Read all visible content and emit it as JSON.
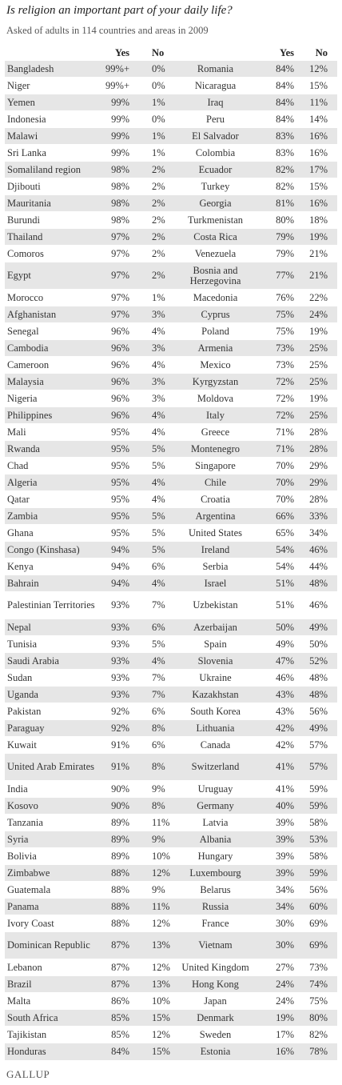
{
  "title": "Is religion an important part of your daily life?",
  "subtitle": "Asked of adults in 114 countries and areas in 2009",
  "headers": {
    "yes": "Yes",
    "no": "No"
  },
  "rows": [
    {
      "c1": "Bangladesh",
      "y1": "99%+",
      "n1": "0%",
      "c2": "Romania",
      "y2": "84%",
      "n2": "12%"
    },
    {
      "c1": "Niger",
      "y1": "99%+",
      "n1": "0%",
      "c2": "Nicaragua",
      "y2": "84%",
      "n2": "15%"
    },
    {
      "c1": "Yemen",
      "y1": "99%",
      "n1": "1%",
      "c2": "Iraq",
      "y2": "84%",
      "n2": "11%"
    },
    {
      "c1": "Indonesia",
      "y1": "99%",
      "n1": "0%",
      "c2": "Peru",
      "y2": "84%",
      "n2": "14%"
    },
    {
      "c1": "Malawi",
      "y1": "99%",
      "n1": "1%",
      "c2": "El Salvador",
      "y2": "83%",
      "n2": "16%"
    },
    {
      "c1": "Sri Lanka",
      "y1": "99%",
      "n1": "1%",
      "c2": "Colombia",
      "y2": "83%",
      "n2": "16%"
    },
    {
      "c1": "Somaliland region",
      "y1": "98%",
      "n1": "2%",
      "c2": "Ecuador",
      "y2": "82%",
      "n2": "17%"
    },
    {
      "c1": "Djibouti",
      "y1": "98%",
      "n1": "2%",
      "c2": "Turkey",
      "y2": "82%",
      "n2": "15%"
    },
    {
      "c1": "Mauritania",
      "y1": "98%",
      "n1": "2%",
      "c2": "Georgia",
      "y2": "81%",
      "n2": "16%"
    },
    {
      "c1": "Burundi",
      "y1": "98%",
      "n1": "2%",
      "c2": "Turkmenistan",
      "y2": "80%",
      "n2": "18%"
    },
    {
      "c1": "Thailand",
      "y1": "97%",
      "n1": "2%",
      "c2": "Costa Rica",
      "y2": "79%",
      "n2": "19%"
    },
    {
      "c1": "Comoros",
      "y1": "97%",
      "n1": "2%",
      "c2": "Venezuela",
      "y2": "79%",
      "n2": "21%"
    },
    {
      "c1": "Egypt",
      "y1": "97%",
      "n1": "2%",
      "c2": "Bosnia and Herzegovina",
      "y2": "77%",
      "n2": "21%"
    },
    {
      "c1": "Morocco",
      "y1": "97%",
      "n1": "1%",
      "c2": "Macedonia",
      "y2": "76%",
      "n2": "22%"
    },
    {
      "c1": "Afghanistan",
      "y1": "97%",
      "n1": "3%",
      "c2": "Cyprus",
      "y2": "75%",
      "n2": "24%"
    },
    {
      "c1": "Senegal",
      "y1": "96%",
      "n1": "4%",
      "c2": "Poland",
      "y2": "75%",
      "n2": "19%"
    },
    {
      "c1": "Cambodia",
      "y1": "96%",
      "n1": "3%",
      "c2": "Armenia",
      "y2": "73%",
      "n2": "25%"
    },
    {
      "c1": "Cameroon",
      "y1": "96%",
      "n1": "4%",
      "c2": "Mexico",
      "y2": "73%",
      "n2": "25%"
    },
    {
      "c1": "Malaysia",
      "y1": "96%",
      "n1": "3%",
      "c2": "Kyrgyzstan",
      "y2": "72%",
      "n2": "25%"
    },
    {
      "c1": "Nigeria",
      "y1": "96%",
      "n1": "3%",
      "c2": "Moldova",
      "y2": "72%",
      "n2": "19%"
    },
    {
      "c1": "Philippines",
      "y1": "96%",
      "n1": "4%",
      "c2": "Italy",
      "y2": "72%",
      "n2": "25%"
    },
    {
      "c1": "Mali",
      "y1": "95%",
      "n1": "4%",
      "c2": "Greece",
      "y2": "71%",
      "n2": "28%"
    },
    {
      "c1": "Rwanda",
      "y1": "95%",
      "n1": "5%",
      "c2": "Montenegro",
      "y2": "71%",
      "n2": "28%"
    },
    {
      "c1": "Chad",
      "y1": "95%",
      "n1": "5%",
      "c2": "Singapore",
      "y2": "70%",
      "n2": "29%"
    },
    {
      "c1": "Algeria",
      "y1": "95%",
      "n1": "4%",
      "c2": "Chile",
      "y2": "70%",
      "n2": "29%"
    },
    {
      "c1": "Qatar",
      "y1": "95%",
      "n1": "4%",
      "c2": "Croatia",
      "y2": "70%",
      "n2": "28%"
    },
    {
      "c1": "Zambia",
      "y1": "95%",
      "n1": "5%",
      "c2": "Argentina",
      "y2": "66%",
      "n2": "33%"
    },
    {
      "c1": "Ghana",
      "y1": "95%",
      "n1": "5%",
      "c2": "United States",
      "y2": "65%",
      "n2": "34%"
    },
    {
      "c1": "Congo (Kinshasa)",
      "y1": "94%",
      "n1": "5%",
      "c2": "Ireland",
      "y2": "54%",
      "n2": "46%"
    },
    {
      "c1": "Kenya",
      "y1": "94%",
      "n1": "6%",
      "c2": "Serbia",
      "y2": "54%",
      "n2": "44%"
    },
    {
      "c1": "Bahrain",
      "y1": "94%",
      "n1": "4%",
      "c2": "Israel",
      "y2": "51%",
      "n2": "48%"
    },
    {
      "c1": "Palestinian Territories",
      "y1": "93%",
      "n1": "7%",
      "c2": "Uzbekistan",
      "y2": "51%",
      "n2": "46%"
    },
    {
      "c1": "Nepal",
      "y1": "93%",
      "n1": "6%",
      "c2": "Azerbaijan",
      "y2": "50%",
      "n2": "49%"
    },
    {
      "c1": "Tunisia",
      "y1": "93%",
      "n1": "5%",
      "c2": "Spain",
      "y2": "49%",
      "n2": "50%"
    },
    {
      "c1": "Saudi Arabia",
      "y1": "93%",
      "n1": "4%",
      "c2": "Slovenia",
      "y2": "47%",
      "n2": "52%"
    },
    {
      "c1": "Sudan",
      "y1": "93%",
      "n1": "7%",
      "c2": "Ukraine",
      "y2": "46%",
      "n2": "48%"
    },
    {
      "c1": "Uganda",
      "y1": "93%",
      "n1": "7%",
      "c2": "Kazakhstan",
      "y2": "43%",
      "n2": "48%"
    },
    {
      "c1": "Pakistan",
      "y1": "92%",
      "n1": "6%",
      "c2": "South Korea",
      "y2": "43%",
      "n2": "56%"
    },
    {
      "c1": "Paraguay",
      "y1": "92%",
      "n1": "8%",
      "c2": "Lithuania",
      "y2": "42%",
      "n2": "49%"
    },
    {
      "c1": "Kuwait",
      "y1": "91%",
      "n1": "6%",
      "c2": "Canada",
      "y2": "42%",
      "n2": "57%"
    },
    {
      "c1": "United Arab Emirates",
      "y1": "91%",
      "n1": "8%",
      "c2": "Switzerland",
      "y2": "41%",
      "n2": "57%"
    },
    {
      "c1": "India",
      "y1": "90%",
      "n1": "9%",
      "c2": "Uruguay",
      "y2": "41%",
      "n2": "59%"
    },
    {
      "c1": "Kosovo",
      "y1": "90%",
      "n1": "8%",
      "c2": "Germany",
      "y2": "40%",
      "n2": "59%"
    },
    {
      "c1": "Tanzania",
      "y1": "89%",
      "n1": "11%",
      "c2": "Latvia",
      "y2": "39%",
      "n2": "58%"
    },
    {
      "c1": "Syria",
      "y1": "89%",
      "n1": "9%",
      "c2": "Albania",
      "y2": "39%",
      "n2": "53%"
    },
    {
      "c1": "Bolivia",
      "y1": "89%",
      "n1": "10%",
      "c2": "Hungary",
      "y2": "39%",
      "n2": "58%"
    },
    {
      "c1": "Zimbabwe",
      "y1": "88%",
      "n1": "12%",
      "c2": "Luxembourg",
      "y2": "39%",
      "n2": "59%"
    },
    {
      "c1": "Guatemala",
      "y1": "88%",
      "n1": "9%",
      "c2": "Belarus",
      "y2": "34%",
      "n2": "56%"
    },
    {
      "c1": "Panama",
      "y1": "88%",
      "n1": "11%",
      "c2": "Russia",
      "y2": "34%",
      "n2": "60%"
    },
    {
      "c1": "Ivory Coast",
      "y1": "88%",
      "n1": "12%",
      "c2": "France",
      "y2": "30%",
      "n2": "69%"
    },
    {
      "c1": "Dominican Republic",
      "y1": "87%",
      "n1": "13%",
      "c2": "Vietnam",
      "y2": "30%",
      "n2": "69%"
    },
    {
      "c1": "Lebanon",
      "y1": "87%",
      "n1": "12%",
      "c2": "United Kingdom",
      "y2": "27%",
      "n2": "73%"
    },
    {
      "c1": "Brazil",
      "y1": "87%",
      "n1": "13%",
      "c2": "Hong Kong",
      "y2": "24%",
      "n2": "74%"
    },
    {
      "c1": "Malta",
      "y1": "86%",
      "n1": "10%",
      "c2": "Japan",
      "y2": "24%",
      "n2": "75%"
    },
    {
      "c1": "South Africa",
      "y1": "85%",
      "n1": "15%",
      "c2": "Denmark",
      "y2": "19%",
      "n2": "80%"
    },
    {
      "c1": "Tajikistan",
      "y1": "85%",
      "n1": "12%",
      "c2": "Sweden",
      "y2": "17%",
      "n2": "82%"
    },
    {
      "c1": "Honduras",
      "y1": "84%",
      "n1": "15%",
      "c2": "Estonia",
      "y2": "16%",
      "n2": "78%"
    }
  ],
  "logo": "GALLUP"
}
